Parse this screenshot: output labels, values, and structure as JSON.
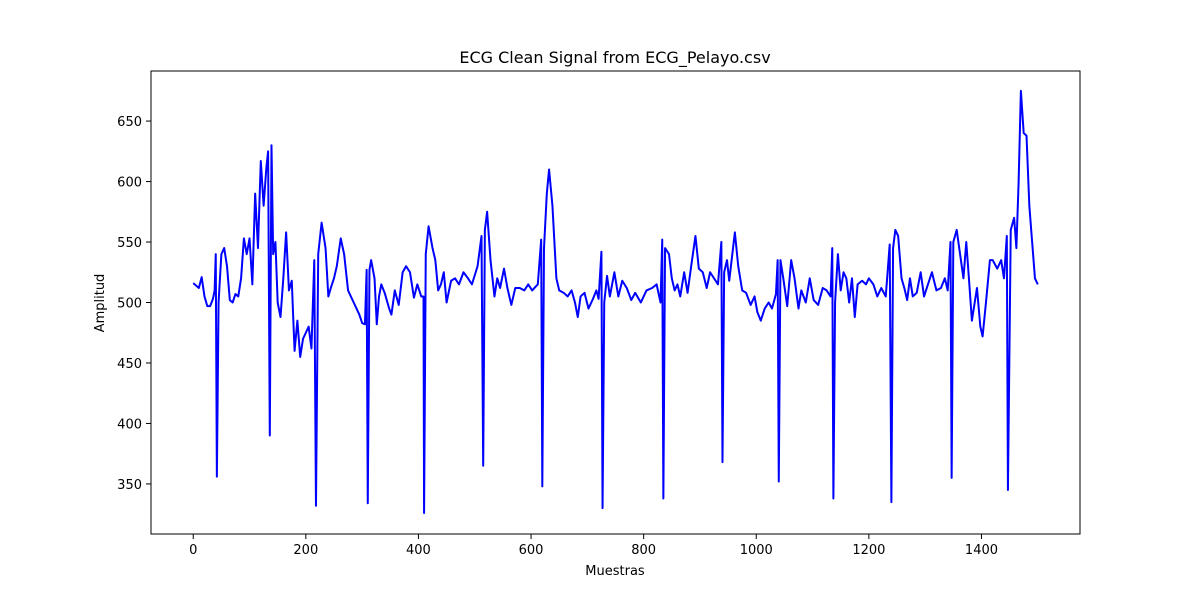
{
  "chart_data": {
    "type": "line",
    "title": "ECG Clean Signal from ECG_Pelayo.csv",
    "x_label": "Muestras",
    "y_label": "Amplitud",
    "x": [
      0,
      10,
      15,
      20,
      25,
      30,
      35,
      38,
      40,
      42,
      45,
      50,
      55,
      60,
      65,
      70,
      75,
      80,
      85,
      90,
      95,
      100,
      105,
      110,
      115,
      120,
      125,
      130,
      133,
      136,
      139,
      142,
      146,
      150,
      155,
      160,
      165,
      170,
      175,
      180,
      185,
      190,
      195,
      200,
      205,
      210,
      215,
      218,
      222,
      228,
      235,
      240,
      245,
      250,
      255,
      262,
      268,
      275,
      285,
      295,
      300,
      305,
      308,
      310,
      313,
      316,
      322,
      326,
      330,
      334,
      340,
      348,
      352,
      358,
      365,
      372,
      378,
      385,
      392,
      398,
      405,
      409,
      410,
      413,
      418,
      425,
      430,
      435,
      440,
      445,
      450,
      458,
      465,
      472,
      480,
      488,
      495,
      505,
      512,
      515,
      518,
      522,
      528,
      535,
      540,
      545,
      552,
      558,
      565,
      572,
      580,
      588,
      595,
      602,
      612,
      618,
      620,
      623,
      628,
      632,
      638,
      645,
      650,
      658,
      665,
      672,
      678,
      683,
      688,
      695,
      702,
      710,
      716,
      720,
      725,
      727,
      730,
      735,
      740,
      748,
      755,
      762,
      770,
      778,
      785,
      795,
      805,
      815,
      823,
      830,
      833,
      835,
      838,
      845,
      850,
      855,
      860,
      865,
      872,
      878,
      885,
      892,
      898,
      905,
      912,
      918,
      925,
      932,
      938,
      940,
      943,
      948,
      952,
      958,
      962,
      968,
      975,
      982,
      990,
      997,
      1002,
      1008,
      1015,
      1022,
      1028,
      1035,
      1038,
      1040,
      1043,
      1048,
      1055,
      1062,
      1068,
      1075,
      1080,
      1088,
      1095,
      1102,
      1110,
      1118,
      1125,
      1132,
      1135,
      1137,
      1140,
      1145,
      1150,
      1155,
      1160,
      1165,
      1170,
      1175,
      1180,
      1188,
      1195,
      1200,
      1208,
      1215,
      1222,
      1230,
      1237,
      1240,
      1243,
      1247,
      1252,
      1258,
      1263,
      1268,
      1273,
      1278,
      1285,
      1292,
      1298,
      1305,
      1312,
      1320,
      1328,
      1335,
      1340,
      1345,
      1347,
      1350,
      1356,
      1362,
      1368,
      1373,
      1378,
      1383,
      1388,
      1392,
      1398,
      1402,
      1408,
      1415,
      1420,
      1428,
      1435,
      1440,
      1445,
      1447,
      1452,
      1458,
      1462,
      1466,
      1470,
      1475,
      1480,
      1485,
      1490,
      1495,
      1500
    ],
    "series": [
      {
        "color": "#0000ff",
        "values": [
          516,
          512,
          521,
          505,
          497,
          497,
          503,
          510,
          540,
          356,
          500,
          540,
          545,
          530,
          502,
          500,
          507,
          505,
          520,
          553,
          540,
          553,
          515,
          590,
          545,
          617,
          580,
          612,
          625,
          390,
          630,
          540,
          550,
          500,
          488,
          520,
          558,
          510,
          518,
          460,
          485,
          455,
          470,
          475,
          480,
          462,
          535,
          332,
          540,
          566,
          545,
          505,
          513,
          520,
          530,
          553,
          540,
          510,
          500,
          490,
          483,
          482,
          527,
          334,
          527,
          535,
          520,
          482,
          505,
          515,
          508,
          495,
          490,
          510,
          498,
          525,
          530,
          525,
          504,
          515,
          505,
          505,
          326,
          540,
          563,
          545,
          535,
          510,
          515,
          525,
          500,
          518,
          520,
          515,
          525,
          520,
          515,
          530,
          555,
          365,
          560,
          575,
          535,
          505,
          520,
          512,
          528,
          512,
          498,
          512,
          512,
          510,
          515,
          510,
          515,
          552,
          348,
          545,
          590,
          610,
          580,
          520,
          510,
          508,
          505,
          510,
          500,
          488,
          505,
          508,
          495,
          503,
          510,
          503,
          542,
          330,
          500,
          522,
          505,
          525,
          505,
          518,
          512,
          502,
          508,
          500,
          510,
          512,
          515,
          500,
          552,
          338,
          545,
          540,
          520,
          510,
          515,
          505,
          525,
          508,
          532,
          555,
          528,
          525,
          512,
          525,
          520,
          515,
          550,
          368,
          525,
          535,
          518,
          542,
          558,
          530,
          510,
          508,
          498,
          505,
          492,
          485,
          495,
          500,
          495,
          507,
          535,
          352,
          535,
          520,
          497,
          535,
          520,
          495,
          510,
          500,
          520,
          502,
          498,
          512,
          510,
          505,
          545,
          338,
          500,
          540,
          510,
          525,
          520,
          500,
          520,
          488,
          515,
          518,
          515,
          520,
          515,
          505,
          512,
          505,
          548,
          335,
          545,
          560,
          555,
          520,
          512,
          502,
          520,
          505,
          508,
          525,
          505,
          515,
          525,
          510,
          512,
          520,
          510,
          550,
          355,
          550,
          560,
          540,
          520,
          550,
          518,
          485,
          500,
          512,
          480,
          472,
          500,
          535,
          535,
          528,
          535,
          520,
          555,
          345,
          560,
          570,
          545,
          600,
          675,
          640,
          638,
          580,
          550,
          520,
          515
        ]
      }
    ],
    "xlim": [
      -75,
      1575
    ],
    "ylim": [
      308.6,
      691.4
    ],
    "xticks": [
      0,
      200,
      400,
      600,
      800,
      1000,
      1200,
      1400
    ],
    "yticks": [
      350,
      400,
      450,
      500,
      550,
      600,
      650
    ]
  }
}
